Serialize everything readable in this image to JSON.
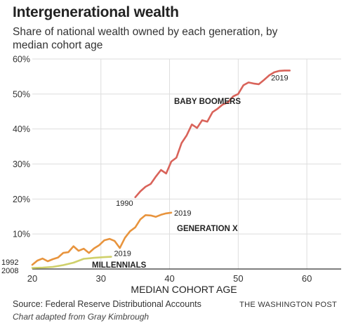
{
  "header": {
    "title": "Intergenerational wealth",
    "subtitle": "Share of national wealth owned by each generation, by median cohort age"
  },
  "footer": {
    "source": "Source: Federal Reserve Distributional Accounts",
    "credit": "Chart adapted from Gray Kimbrough",
    "brand": "THE WASHINGTON POST"
  },
  "colors": {
    "baby_boomers": "#d9635a",
    "generation_x": "#e8943d",
    "millennials": "#cfd06a",
    "grid": "#dddddd",
    "axis": "#333333"
  },
  "chart_data": {
    "type": "line",
    "title": "Intergenerational wealth",
    "subtitle": "Share of national wealth owned by each generation, by median cohort age",
    "xlabel": "MEDIAN COHORT AGE",
    "ylabel": "",
    "xlim": [
      20,
      65
    ],
    "ylim": [
      0,
      60
    ],
    "x_ticks": [
      20,
      30,
      40,
      50,
      60
    ],
    "x_tick_labels": [
      "20",
      "30",
      "40",
      "50",
      "60"
    ],
    "y_ticks": [
      10,
      20,
      30,
      40,
      50,
      60
    ],
    "y_tick_labels": [
      "10%",
      "20%",
      "30%",
      "40%",
      "50%",
      "60%"
    ],
    "grid": true,
    "series": [
      {
        "name": "BABY BOOMERS",
        "color": "#d9635a",
        "start_label": "1990",
        "end_label": "2019",
        "points": [
          [
            35,
            20.5
          ],
          [
            35.75,
            22.2
          ],
          [
            36.5,
            23.5
          ],
          [
            37.25,
            24.3
          ],
          [
            38,
            26.4
          ],
          [
            38.75,
            28.3
          ],
          [
            39.5,
            27.3
          ],
          [
            40.25,
            30.7
          ],
          [
            41,
            31.8
          ],
          [
            41.75,
            36.0
          ],
          [
            42.5,
            38.2
          ],
          [
            43.25,
            41.3
          ],
          [
            44,
            40.3
          ],
          [
            44.75,
            42.5
          ],
          [
            45.5,
            42.1
          ],
          [
            46.25,
            44.8
          ],
          [
            47,
            45.8
          ],
          [
            47.75,
            47.0
          ],
          [
            48.5,
            47.6
          ],
          [
            49.25,
            49.3
          ],
          [
            50,
            50.0
          ],
          [
            50.75,
            52.5
          ],
          [
            51.5,
            53.3
          ],
          [
            52.25,
            53.0
          ],
          [
            53,
            52.8
          ],
          [
            53.75,
            54.0
          ],
          [
            54.5,
            55.3
          ],
          [
            55.25,
            56.2
          ],
          [
            56,
            56.6
          ],
          [
            56.75,
            56.7
          ],
          [
            57.5,
            56.7
          ]
        ]
      },
      {
        "name": "GENERATION X",
        "color": "#e8943d",
        "end_label": "2019",
        "points": [
          [
            20,
            1.2
          ],
          [
            20.75,
            2.4
          ],
          [
            21.5,
            3.0
          ],
          [
            22.25,
            2.2
          ],
          [
            23,
            2.8
          ],
          [
            23.75,
            3.3
          ],
          [
            24.5,
            4.6
          ],
          [
            25.25,
            4.8
          ],
          [
            26,
            6.5
          ],
          [
            26.75,
            5.2
          ],
          [
            27.5,
            5.8
          ],
          [
            28.25,
            4.6
          ],
          [
            29,
            5.9
          ],
          [
            29.75,
            6.8
          ],
          [
            30.5,
            8.2
          ],
          [
            31.25,
            8.6
          ],
          [
            32,
            8.0
          ],
          [
            32.75,
            6.0
          ],
          [
            33.5,
            8.9
          ],
          [
            34.25,
            10.8
          ],
          [
            35,
            11.9
          ],
          [
            35.75,
            14.2
          ],
          [
            36.5,
            15.4
          ],
          [
            37.25,
            15.3
          ],
          [
            38,
            14.9
          ],
          [
            38.75,
            15.5
          ],
          [
            39.5,
            15.9
          ],
          [
            40.25,
            16.1
          ]
        ]
      },
      {
        "name": "MILLENNIALS",
        "color": "#cfd06a",
        "end_label": "2019",
        "points": [
          [
            20,
            0.3
          ],
          [
            21.5,
            0.4
          ],
          [
            23,
            0.6
          ],
          [
            24.5,
            1.1
          ],
          [
            26,
            1.8
          ],
          [
            27.5,
            2.9
          ],
          [
            29,
            3.2
          ],
          [
            30.5,
            3.4
          ],
          [
            31.5,
            3.5
          ]
        ]
      }
    ],
    "annotations": [
      {
        "text": "1992",
        "note": "start of Generation X"
      },
      {
        "text": "2008",
        "note": "start of Millennials"
      }
    ]
  }
}
